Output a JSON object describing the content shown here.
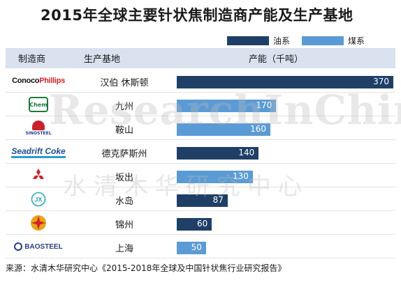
{
  "title": "2015年全球主要针状焦制造商产能及生产基地",
  "legend": {
    "oil_label": "油系",
    "coal_label": "煤系"
  },
  "colors": {
    "oil": "#1f3f66",
    "coal": "#5b9bd5",
    "header_bg": "#d9e2ee"
  },
  "header": {
    "maker": "制造商",
    "base": "生产基地",
    "capacity": "产能（千吨）"
  },
  "watermark": {
    "en": "ResearchInChina",
    "cn": "水清木华研究中心"
  },
  "logos": {
    "conoco_a": "Conoco",
    "conoco_b": "Phillips",
    "chem": "Chem",
    "sinosteel": "SINOSTEEL",
    "seadrift": "Seadrift Coke",
    "baosteel": "BAOSTEEL"
  },
  "chart_data": {
    "type": "bar",
    "orientation": "horizontal",
    "categories": [
      "汉伯   休斯顿",
      "九州",
      "鞍山",
      "德克萨斯州",
      "坂出",
      "水岛",
      "锦州",
      "上海"
    ],
    "values": [
      370,
      170,
      160,
      140,
      130,
      87,
      60,
      50
    ],
    "series_type": [
      "油系",
      "煤系",
      "煤系",
      "油系",
      "煤系",
      "油系",
      "油系",
      "煤系"
    ],
    "legend": [
      "油系",
      "煤系"
    ],
    "legend_position": "top-right",
    "value_labels": [
      "370",
      "170",
      "160",
      "140",
      "130",
      "87",
      "60",
      "50"
    ],
    "ylabel": "产能（千吨）"
  },
  "source": "来源：水清木华研究中心《2015-2018年全球及中国针状焦行业研究报告》"
}
